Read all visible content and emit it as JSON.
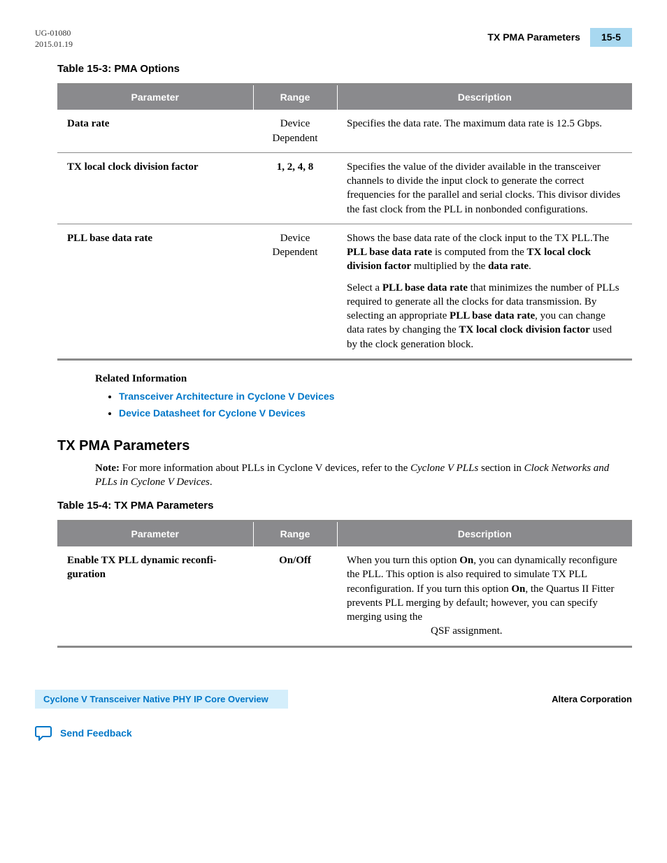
{
  "header": {
    "doc_id": "UG-01080",
    "date": "2015.01.19",
    "section_title": "TX PMA Parameters",
    "page_number": "15-5"
  },
  "table1": {
    "caption": "Table 15-3: PMA Options",
    "columns": [
      "Parameter",
      "Range",
      "Description"
    ],
    "rows": [
      {
        "param": "Data rate",
        "range": "Device Dependent",
        "desc_html": "Specifies the data rate. The maximum data rate is 12.5 Gbps."
      },
      {
        "param": "TX local clock division factor",
        "range": "1, 2, 4, 8",
        "desc_html": "Specifies the value of the divider available in the transceiver channels to divide the input clock to generate the correct frequencies for the parallel and serial clocks. This divisor divides the fast clock from the PLL in nonbonded configurations."
      },
      {
        "param": "PLL base data rate",
        "range": "Device Dependent",
        "desc_html": "<p class='desc-para'>Shows the base data rate of the clock input to the TX PLL.The <b>PLL base data rate</b> is computed from the <b>TX local clock division factor</b> multiplied by the <b>data rate</b>.</p><p class='desc-para'>Select a <b>PLL base data rate</b> that minimizes the number of PLLs required to generate all the clocks for data transmission. By selecting an appropriate <b>PLL base data rate</b>, you can change data rates by changing the <b>TX local clock division factor</b> used by the clock generation block.</p>"
      }
    ]
  },
  "related": {
    "heading": "Related Information",
    "links": [
      "Transceiver Architecture in Cyclone V Devices",
      "Device Datasheet for Cyclone V Devices"
    ]
  },
  "section": {
    "title": "TX PMA Parameters",
    "note_label": "Note:",
    "note_html": "For more information about PLLs in Cyclone V devices, refer to the <span class='italic'>Cyclone V PLLs</span> section in <span class='italic'>Clock Networks and PLLs in Cyclone V Devices</span>."
  },
  "table2": {
    "caption": "Table 15-4: TX PMA Parameters",
    "columns": [
      "Parameter",
      "Range",
      "Description"
    ],
    "rows": [
      {
        "param": "Enable TX PLL dynamic reconfi‐guration",
        "range": "On/Off",
        "desc_html": "When you turn this option <b>On</b>, you can dynamically reconfigure the PLL. This option is also required to simulate TX PLL reconfiguration. If you turn this option <b>On</b>, the Quartus II Fitter prevents PLL merging by default; however, you can specify merging using the<br><span class='qsf-indent'>QSF assignment.</span>"
      }
    ]
  },
  "footer": {
    "left": "Cyclone V Transceiver Native PHY IP Core Overview",
    "right": "Altera Corporation",
    "feedback": "Send Feedback"
  },
  "colors": {
    "header_bg": "#8a8a8d",
    "link": "#0077c8",
    "page_box": "#a8d8f0",
    "footer_box": "#d4eefb"
  }
}
